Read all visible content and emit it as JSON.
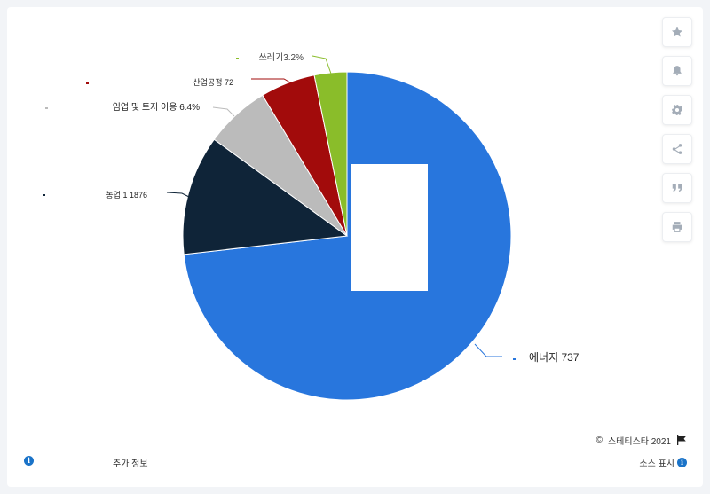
{
  "chart_data": {
    "type": "pie",
    "title": "",
    "slices": [
      {
        "label": "에너지 737",
        "value": 73.2,
        "color": "#2876dd"
      },
      {
        "label": "농업 1 1876",
        "value": 11.8,
        "color": "#0f2438"
      },
      {
        "label": "임업 및 토지 이용 6.4%",
        "value": 6.4,
        "color": "#bbbbbb"
      },
      {
        "label": "산업공정 72",
        "value": 5.4,
        "color": "#a20b0b"
      },
      {
        "label": "쓰레기3.2%",
        "value": 3.2,
        "color": "#8abd2a"
      }
    ]
  },
  "toolbar": {
    "icons": [
      "star-icon",
      "bell-icon",
      "gear-icon",
      "share-icon",
      "quote-icon",
      "print-icon"
    ]
  },
  "footer": {
    "copyright_symbol": "©",
    "copyright": "스테티스타 2021",
    "more_info": "추가 정보",
    "source": "소스 표시"
  }
}
